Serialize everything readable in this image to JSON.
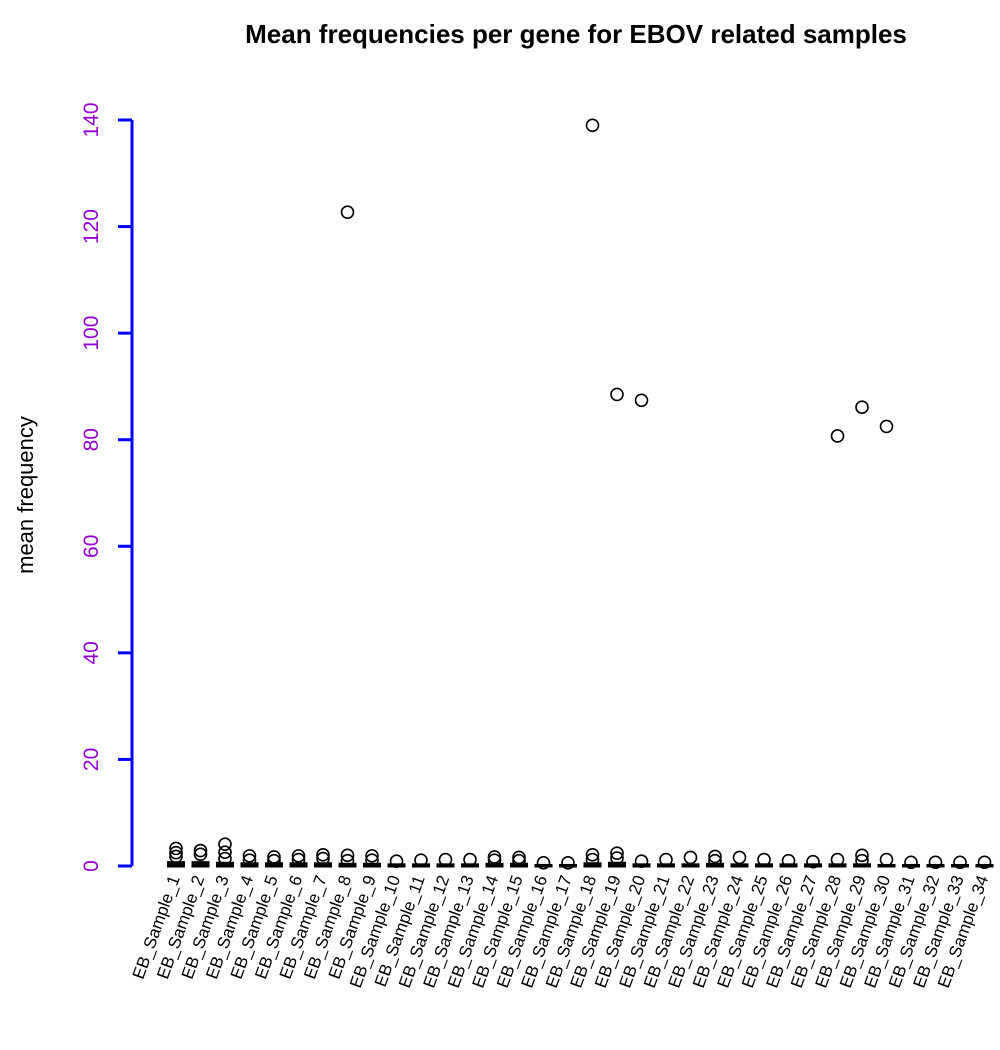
{
  "chart_data": {
    "type": "box",
    "title": "Mean frequencies per gene for EBOV related samples",
    "xlabel": "",
    "ylabel": "mean frequency",
    "ylim": [
      0,
      140
    ],
    "yticks": [
      0,
      20,
      40,
      60,
      80,
      100,
      120,
      140
    ],
    "categories": [
      "EB_Sample_1",
      "EB_Sample_2",
      "EB_Sample_3",
      "EB_Sample_4",
      "EB_Sample_5",
      "EB_Sample_6",
      "EB_Sample_7",
      "EB_Sample_8",
      "EB_Sample_9",
      "EB_Sample_10",
      "EB_Sample_11",
      "EB_Sample_12",
      "EB_Sample_13",
      "EB_Sample_14",
      "EB_Sample_15",
      "EB_Sample_16",
      "EB_Sample_17",
      "EB_Sample_18",
      "EB_Sample_19",
      "EB_Sample_20",
      "EB_Sample_21",
      "EB_Sample_22",
      "EB_Sample_23",
      "EB_Sample_24",
      "EB_Sample_25",
      "EB_Sample_26",
      "EB_Sample_27",
      "EB_Sample_28",
      "EB_Sample_29",
      "EB_Sample_30",
      "EB_Sample_31",
      "EB_Sample_32",
      "EB_Sample_33",
      "EB_Sample_34"
    ],
    "medians": [
      0.6,
      0.6,
      0.5,
      0.4,
      0.4,
      0.4,
      0.4,
      0.3,
      0.3,
      0.2,
      0.2,
      0.2,
      0.2,
      0.3,
      0.3,
      0.1,
      0.1,
      0.4,
      0.5,
      0.2,
      0.2,
      0.2,
      0.3,
      0.2,
      0.2,
      0.2,
      0.2,
      0.2,
      0.2,
      0.1,
      0.1,
      0.1,
      0.1,
      0.1
    ],
    "outliers": [
      [
        1.8,
        2.5,
        3.3
      ],
      [
        2.2,
        2.9
      ],
      [
        1.4,
        2.6,
        4.1
      ],
      [
        1.1,
        1.9
      ],
      [
        1.0,
        1.7
      ],
      [
        1.2,
        1.9
      ],
      [
        1.4,
        2.1
      ],
      [
        122.7,
        1.0,
        2.0
      ],
      [
        1.1,
        1.9
      ],
      [
        0.9
      ],
      [
        1.1
      ],
      [
        1.2
      ],
      [
        1.2
      ],
      [
        1.1,
        1.7
      ],
      [
        1.0,
        1.6
      ],
      [
        0.6
      ],
      [
        0.6
      ],
      [
        139.0,
        1.2,
        2.1
      ],
      [
        88.5,
        1.5,
        2.4
      ],
      [
        87.4,
        0.9
      ],
      [
        1.2
      ],
      [
        1.6
      ],
      [
        1.0,
        1.8
      ],
      [
        1.6
      ],
      [
        1.2
      ],
      [
        1.0
      ],
      [
        0.8
      ],
      [
        80.7,
        1.2
      ],
      [
        86.1,
        1.0,
        2.0
      ],
      [
        82.5,
        1.2
      ],
      [
        0.7
      ],
      [
        0.7
      ],
      [
        0.7
      ],
      [
        0.7
      ]
    ],
    "axis_color": "#0000ff",
    "tick_label_color": "#9400d3",
    "grid": false,
    "legend": "none"
  }
}
